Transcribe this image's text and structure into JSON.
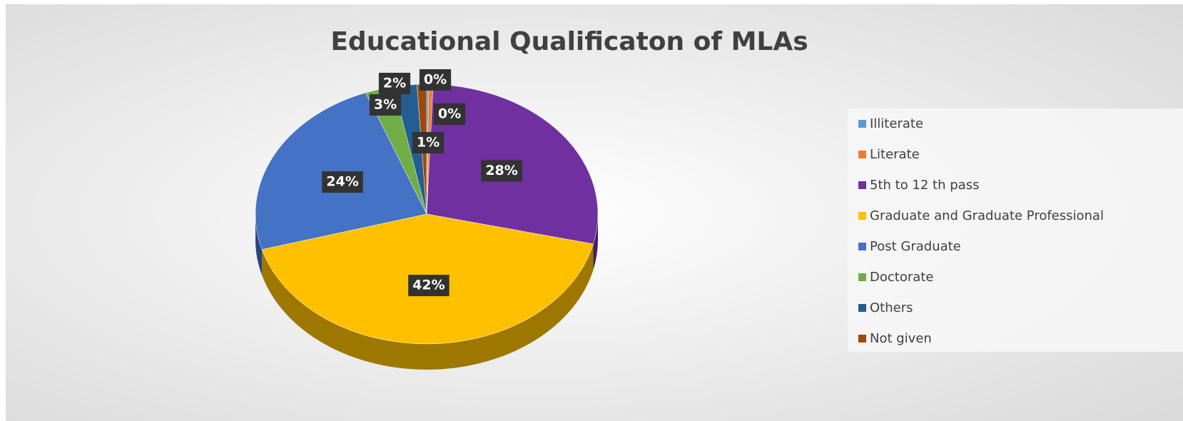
{
  "chart_data": {
    "type": "pie",
    "title": "Educational Qualificaton of MLAs",
    "categories": [
      "Illiterate",
      "Literate",
      "5th to 12 th pass",
      "Graduate and Graduate Professional",
      "Post Graduate",
      "Doctorate",
      "Others",
      "Not given"
    ],
    "values": [
      0.2,
      0.4,
      28.1,
      41.9,
      23.6,
      2.7,
      2.2,
      0.9
    ],
    "value_labels": [
      "0%",
      "0%",
      "28%",
      "42%",
      "24%",
      "3%",
      "2%",
      "1%"
    ],
    "colors": [
      "#5b9bd5",
      "#ed7d31",
      "#7030a0",
      "#ffc000",
      "#4472c4",
      "#70ad47",
      "#255e91",
      "#9e480e"
    ],
    "legend": "right"
  }
}
